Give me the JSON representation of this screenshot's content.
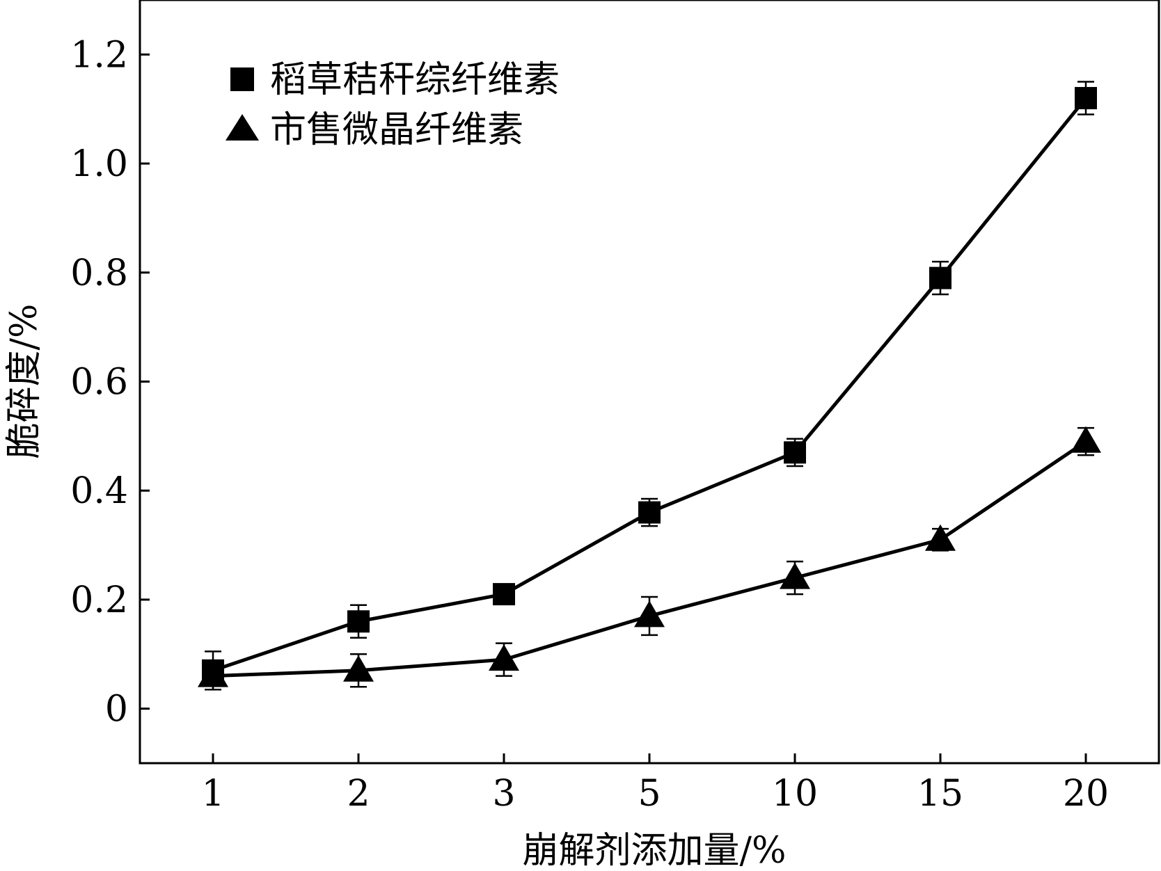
{
  "chart_data": {
    "type": "line",
    "xlabel": "崩解剂添加量/%",
    "ylabel": "脆碎度/%",
    "categories": [
      "1",
      "2",
      "3",
      "5",
      "10",
      "15",
      "20"
    ],
    "y_ticks": [
      "0",
      "0.2",
      "0.4",
      "0.6",
      "0.8",
      "1.0",
      "1.2"
    ],
    "ylim": [
      -0.1,
      1.3
    ],
    "grid": false,
    "legend_position": "top-left",
    "series": [
      {
        "name": "稻草秸秆综纤维素",
        "marker": "square",
        "values": [
          0.07,
          0.16,
          0.21,
          0.36,
          0.47,
          0.79,
          1.12
        ],
        "errors": [
          0.035,
          0.03,
          0.01,
          0.025,
          0.025,
          0.03,
          0.03
        ]
      },
      {
        "name": "市售微晶纤维素",
        "marker": "triangle",
        "values": [
          0.06,
          0.07,
          0.09,
          0.17,
          0.24,
          0.31,
          0.49
        ],
        "errors": [
          0.025,
          0.03,
          0.03,
          0.035,
          0.03,
          0.02,
          0.025
        ]
      }
    ]
  }
}
